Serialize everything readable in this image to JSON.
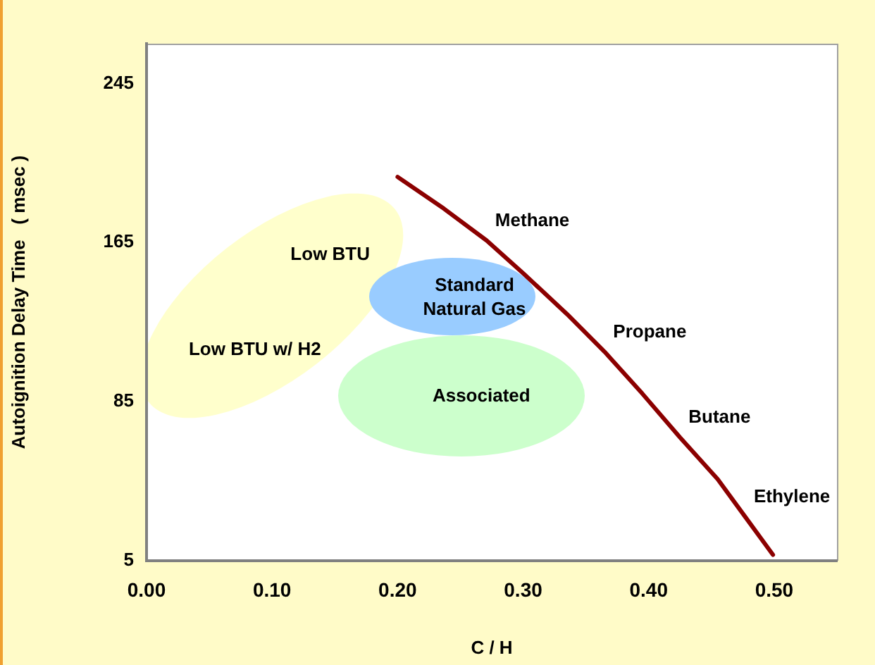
{
  "chart_data": {
    "type": "line",
    "xlabel": "C / H",
    "ylabel": "Autoignition Delay Time   ( msec )",
    "series": [
      {
        "color": "#8b0000",
        "x": [
          0.2,
          0.237,
          0.271,
          0.301,
          0.335,
          0.365,
          0.395,
          0.425,
          0.455,
          0.477,
          0.499
        ],
        "values": [
          198,
          182,
          166,
          149,
          129,
          110,
          89,
          67,
          46,
          27,
          8
        ]
      }
    ],
    "xlim": [
      0,
      0.55
    ],
    "ylim": [
      5,
      265
    ],
    "xticks": [
      {
        "value": 0,
        "label": "0.00"
      },
      {
        "value": 0.1,
        "label": "0.10"
      },
      {
        "value": 0.2,
        "label": "0.20"
      },
      {
        "value": 0.3,
        "label": "0.30"
      },
      {
        "value": 0.4,
        "label": "0.40"
      },
      {
        "value": 0.5,
        "label": "0.50"
      }
    ],
    "yticks": [
      5,
      85,
      165,
      245
    ],
    "annotations": [
      {
        "text": "Methane",
        "x": 0.271,
        "y": 166
      },
      {
        "text": "Propane",
        "x": 0.365,
        "y": 110
      },
      {
        "text": "Butane",
        "x": 0.425,
        "y": 67
      },
      {
        "text": "Ethylene",
        "x": 0.477,
        "y": 27
      },
      "Standard\nNatural Gas",
      "Associated",
      "Low BTU",
      "Low BTU w/ H2"
    ],
    "grid": false,
    "legend": false,
    "marker": "none",
    "line_style": "solid"
  }
}
